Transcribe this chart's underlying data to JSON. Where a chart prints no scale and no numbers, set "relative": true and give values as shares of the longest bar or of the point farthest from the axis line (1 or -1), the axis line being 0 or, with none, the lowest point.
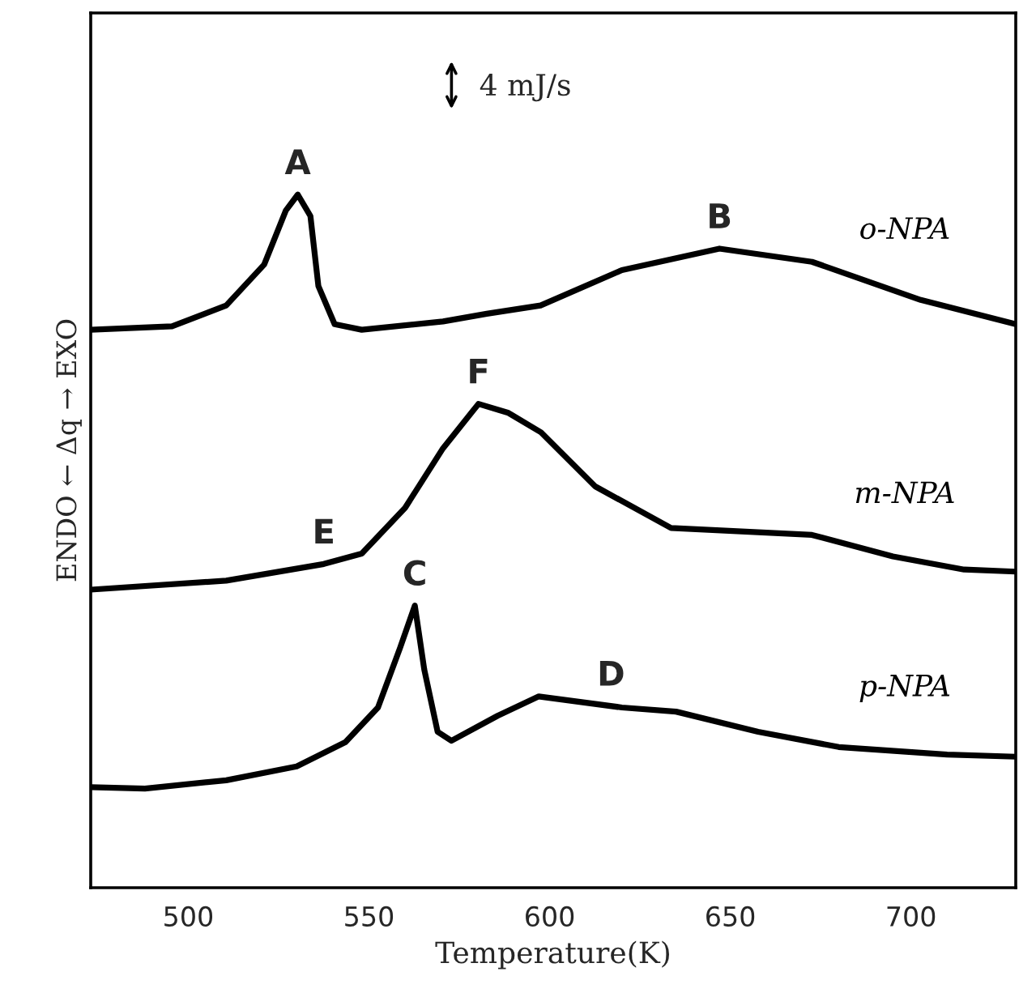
{
  "chart_data": {
    "type": "line",
    "relative": true,
    "xlabel": "Temperature(K)",
    "ylabel": "ENDO ← Δq → EXO",
    "xlim": [
      473,
      729
    ],
    "xticks": [
      500,
      550,
      600,
      650,
      700
    ],
    "tick_labels": "x",
    "grid": false,
    "legend": false,
    "marker": "none",
    "line_style": "solid",
    "series": [
      {
        "name": "o-NPA",
        "color": "#000000",
        "x": [
          473,
          495.5,
          510.5,
          521,
          527,
          530.3,
          533.8,
          536,
          540.5,
          548,
          570.5,
          582.6,
          597.5,
          620,
          647,
          672.6,
          702.7,
          729
        ],
        "values": [
          0.805,
          0.81,
          0.84,
          0.899,
          0.977,
          1.0,
          0.969,
          0.868,
          0.813,
          0.805,
          0.817,
          0.828,
          0.84,
          0.891,
          0.922,
          0.903,
          0.848,
          0.813
        ]
      },
      {
        "name": "m-NPA",
        "color": "#000000",
        "x": [
          473,
          510.5,
          537.5,
          548,
          560,
          570.5,
          580.3,
          588.6,
          597.6,
          612.6,
          633.6,
          672.6,
          695,
          714.7,
          729
        ],
        "values": [
          0.43,
          0.443,
          0.467,
          0.482,
          0.548,
          0.634,
          0.698,
          0.685,
          0.657,
          0.579,
          0.519,
          0.509,
          0.478,
          0.459,
          0.456
        ]
      },
      {
        "name": "p-NPA",
        "color": "#000000",
        "x": [
          473,
          488,
          510.5,
          530,
          543.5,
          552.5,
          558.6,
          562.7,
          565.3,
          569,
          572.8,
          585.6,
          597,
          620,
          635,
          657.7,
          680,
          710,
          729
        ],
        "values": [
          0.145,
          0.143,
          0.155,
          0.175,
          0.21,
          0.26,
          0.346,
          0.407,
          0.315,
          0.225,
          0.212,
          0.248,
          0.276,
          0.26,
          0.254,
          0.225,
          0.203,
          0.192,
          0.189
        ]
      }
    ],
    "annotations": [
      {
        "text": "A",
        "x": 530.3,
        "y": 1.0
      },
      {
        "text": "B",
        "x": 647,
        "y": 0.922
      },
      {
        "text": "C",
        "x": 562.7,
        "y": 0.407
      },
      {
        "text": "D",
        "x": 617,
        "y": 0.262
      },
      {
        "text": "E",
        "x": 537.5,
        "y": 0.467
      },
      {
        "text": "F",
        "x": 580.3,
        "y": 0.698
      },
      "4 mJ/s"
    ]
  }
}
